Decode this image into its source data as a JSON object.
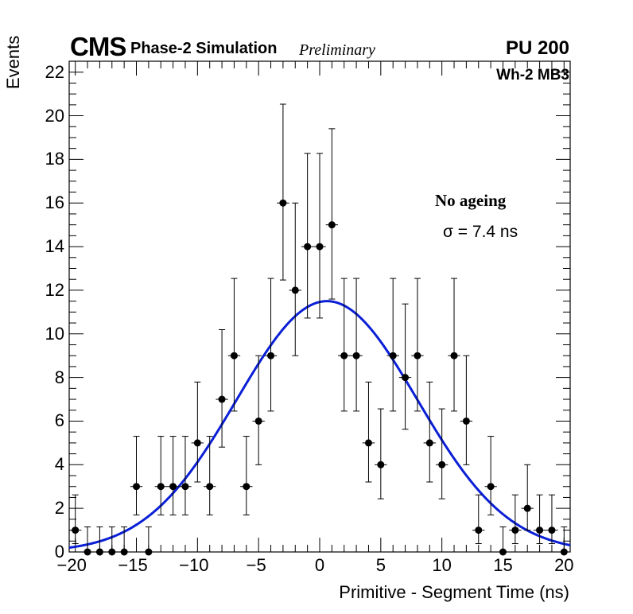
{
  "header": {
    "experiment": "CMS",
    "simulation": "Phase-2 Simulation",
    "status": "Preliminary",
    "pileup": "PU 200",
    "category": "Wh-2 MB3"
  },
  "annotations": {
    "condition": "No ageing",
    "resolution": "σ = 7.4 ns"
  },
  "chart_data": {
    "type": "scatter",
    "title": "",
    "xlabel": "Primitive - Segment Time (ns)",
    "ylabel": "Events",
    "xlim": [
      -20.5,
      20.5
    ],
    "ylim": [
      0,
      22.5
    ],
    "xticks": [
      -20,
      -15,
      -10,
      -5,
      0,
      5,
      10,
      15,
      20
    ],
    "yticks": [
      0,
      2,
      4,
      6,
      8,
      10,
      12,
      14,
      16,
      18,
      20,
      22
    ],
    "series": [
      {
        "name": "data",
        "style": "points with Poisson error bars",
        "color": "#000000",
        "x": [
          -20,
          -19,
          -18,
          -17,
          -16,
          -15,
          -14,
          -13,
          -12,
          -11,
          -10,
          -9,
          -8,
          -7,
          -6,
          -5,
          -4,
          -3,
          -2,
          -1,
          0,
          1,
          2,
          3,
          4,
          5,
          6,
          7,
          8,
          9,
          10,
          11,
          12,
          13,
          14,
          15,
          16,
          17,
          18,
          19,
          20
        ],
        "y": [
          1,
          0,
          0,
          0,
          0,
          3,
          0,
          3,
          3,
          3,
          5,
          3,
          7,
          9,
          3,
          6,
          9,
          16,
          12,
          14,
          14,
          15,
          9,
          9,
          5,
          4,
          9,
          8,
          9,
          5,
          4,
          9,
          6,
          1,
          3,
          0,
          1,
          2,
          1,
          1,
          0
        ]
      },
      {
        "name": "gaussian fit",
        "style": "line",
        "color": "#0a1fd6",
        "amplitude": 11.5,
        "mean": 0.6,
        "sigma": 7.4
      }
    ]
  }
}
